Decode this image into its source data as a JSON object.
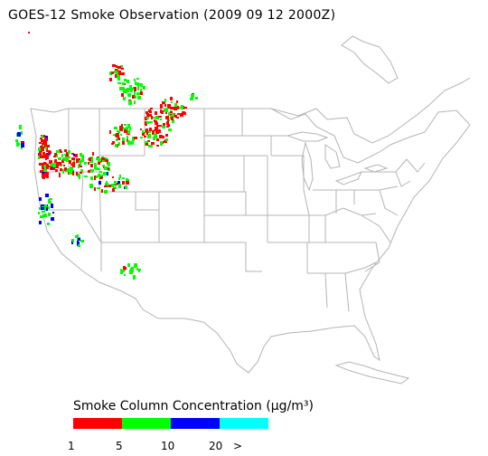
{
  "title": "GOES-12 Smoke Observation (2009 09 12  2000Z)",
  "legend": {
    "title": "Smoke Column Concentration (µg/m³)",
    "bins": [
      {
        "range": "1-5",
        "color": "#ff0000"
      },
      {
        "range": "5-10",
        "color": "#00ff00"
      },
      {
        "range": "10-20",
        "color": "#0000ff"
      },
      {
        "range": ">20",
        "color": "#00ffff"
      }
    ],
    "ticks": [
      "1",
      "5",
      "10",
      "20",
      ">"
    ]
  },
  "map": {
    "region": "Contiguous United States",
    "boundary_color": "#b4b4b4"
  },
  "smoke": {
    "regions": [
      {
        "name": "pacific-northwest-coast",
        "concentration_bin": "1-5"
      },
      {
        "name": "northern-rockies",
        "concentration_bin": "5-10"
      },
      {
        "name": "northern-california",
        "concentration_bin": "10-20"
      },
      {
        "name": "arizona",
        "concentration_bin": "5-10"
      }
    ]
  }
}
